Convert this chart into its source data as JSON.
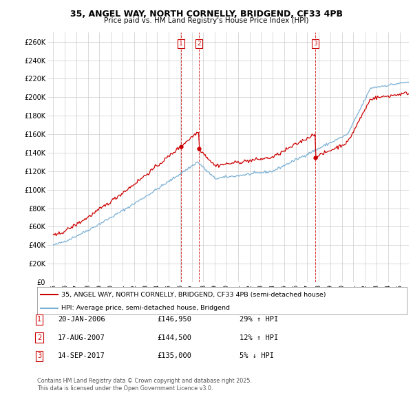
{
  "title_line1": "35, ANGEL WAY, NORTH CORNELLY, BRIDGEND, CF33 4PB",
  "title_line2": "Price paid vs. HM Land Registry's House Price Index (HPI)",
  "legend_label_red": "35, ANGEL WAY, NORTH CORNELLY, BRIDGEND, CF33 4PB (semi-detached house)",
  "legend_label_blue": "HPI: Average price, semi-detached house, Bridgend",
  "footer_line1": "Contains HM Land Registry data © Crown copyright and database right 2025.",
  "footer_line2": "This data is licensed under the Open Government Licence v3.0.",
  "transactions": [
    {
      "num": 1,
      "date": "20-JAN-2006",
      "price": "£146,950",
      "hpi": "29% ↑ HPI",
      "year": 2006.05
    },
    {
      "num": 2,
      "date": "17-AUG-2007",
      "price": "£144,500",
      "hpi": "12% ↑ HPI",
      "year": 2007.63
    },
    {
      "num": 3,
      "date": "14-SEP-2017",
      "price": "£135,000",
      "hpi": "5% ↓ HPI",
      "year": 2017.71
    }
  ],
  "ylim": [
    0,
    270000
  ],
  "yticks": [
    0,
    20000,
    40000,
    60000,
    80000,
    100000,
    120000,
    140000,
    160000,
    180000,
    200000,
    220000,
    240000,
    260000
  ],
  "xlim_start": 1994.5,
  "xlim_end": 2025.8,
  "xtick_years": [
    1995,
    1996,
    1997,
    1998,
    1999,
    2000,
    2001,
    2002,
    2003,
    2004,
    2005,
    2006,
    2007,
    2008,
    2009,
    2010,
    2011,
    2012,
    2013,
    2014,
    2015,
    2016,
    2017,
    2018,
    2019,
    2020,
    2021,
    2022,
    2023,
    2024,
    2025
  ],
  "red_color": "#cc0000",
  "blue_color": "#7ab0d4",
  "background_color": "#ffffff",
  "grid_color": "#cccccc",
  "sale_years": [
    2006.05,
    2007.63,
    2017.71
  ],
  "sale_prices": [
    146950,
    144500,
    135000
  ]
}
